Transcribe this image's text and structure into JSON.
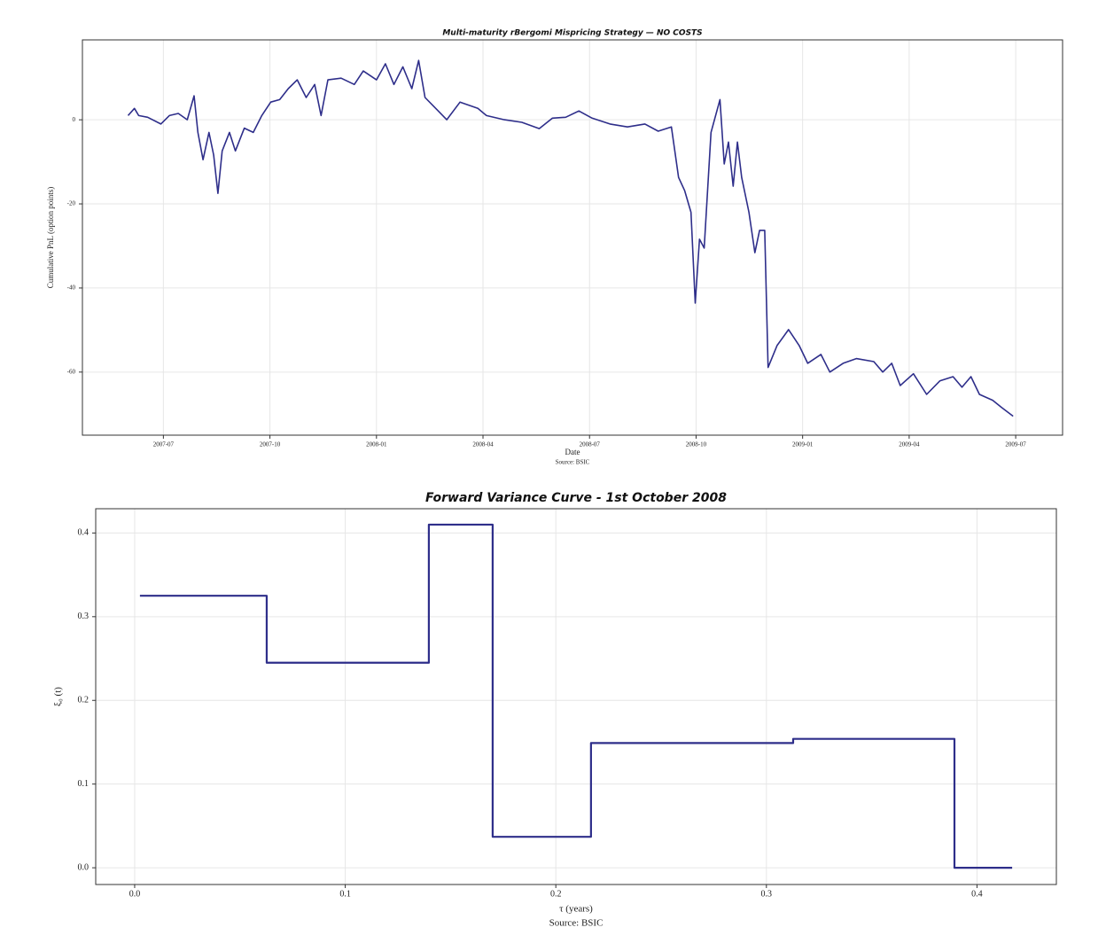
{
  "chart_data": [
    {
      "type": "line",
      "title": "Multi-maturity rBergomi Mispricing Strategy — NO COSTS",
      "xlabel": "Date",
      "ylabel": "Cumulative PnL (option points)",
      "source": "Source: BSIC",
      "color": "#2e2e8a",
      "grid": true,
      "xlim": [
        2007.31,
        2009.61
      ],
      "ylim": [
        -75,
        19
      ],
      "xticks": [
        {
          "value": 2007.5,
          "label": "2007-07"
        },
        {
          "value": 2007.75,
          "label": "2007-10"
        },
        {
          "value": 2008.0,
          "label": "2008-01"
        },
        {
          "value": 2008.25,
          "label": "2008-04"
        },
        {
          "value": 2008.5,
          "label": "2008-07"
        },
        {
          "value": 2008.75,
          "label": "2008-10"
        },
        {
          "value": 2009.0,
          "label": "2009-01"
        },
        {
          "value": 2009.25,
          "label": "2009-04"
        },
        {
          "value": 2009.5,
          "label": "2009-07"
        }
      ],
      "yticks": [
        0,
        -20,
        -40,
        -60
      ],
      "x": [
        2007.417,
        2007.432,
        2007.442,
        2007.463,
        2007.494,
        2007.514,
        2007.535,
        2007.556,
        2007.572,
        2007.581,
        2007.593,
        2007.607,
        2007.618,
        2007.628,
        2007.638,
        2007.655,
        2007.669,
        2007.69,
        2007.711,
        2007.731,
        2007.752,
        2007.773,
        2007.793,
        2007.814,
        2007.835,
        2007.855,
        2007.87,
        2007.886,
        2007.917,
        2007.948,
        2007.969,
        2008.0,
        2008.021,
        2008.041,
        2008.062,
        2008.083,
        2008.099,
        2008.114,
        2008.145,
        2008.165,
        2008.196,
        2008.238,
        2008.258,
        2008.3,
        2008.341,
        2008.382,
        2008.413,
        2008.444,
        2008.475,
        2008.506,
        2008.548,
        2008.589,
        2008.63,
        2008.661,
        2008.692,
        2008.709,
        2008.723,
        2008.738,
        2008.748,
        2008.758,
        2008.769,
        2008.785,
        2008.806,
        2008.816,
        2008.826,
        2008.837,
        2008.847,
        2008.857,
        2008.874,
        2008.888,
        2008.899,
        2008.911,
        2008.919,
        2008.94,
        2008.967,
        2008.992,
        2009.012,
        2009.043,
        2009.064,
        2009.095,
        2009.126,
        2009.167,
        2009.188,
        2009.209,
        2009.229,
        2009.26,
        2009.291,
        2009.322,
        2009.353,
        2009.374,
        2009.395,
        2009.415,
        2009.446,
        2009.467,
        2009.494
      ],
      "values": [
        1,
        2.7,
        1,
        0.6,
        -1,
        1,
        1.5,
        0,
        5.7,
        -3,
        -9.5,
        -3,
        -8.4,
        -17.5,
        -7.4,
        -3,
        -7.4,
        -2,
        -3,
        1,
        4.2,
        4.8,
        7.4,
        9.5,
        5.3,
        8.4,
        1,
        9.5,
        9.9,
        8.4,
        11.6,
        9.5,
        13.3,
        8.4,
        12.6,
        7.4,
        14.1,
        5.3,
        2.1,
        0,
        4.2,
        2.7,
        1,
        0,
        -0.6,
        -2.1,
        0.4,
        0.6,
        2.1,
        0.4,
        -1,
        -1.7,
        -1,
        -2.7,
        -1.7,
        -13.7,
        -16.8,
        -22,
        -43.6,
        -28.4,
        -30.5,
        -3,
        4.8,
        -10.5,
        -5.3,
        -15.8,
        -5.3,
        -13.7,
        -22,
        -31.6,
        -26.3,
        -26.3,
        -58.9,
        -53.7,
        -49.9,
        -53.7,
        -57.9,
        -55.8,
        -60,
        -57.9,
        -56.8,
        -57.5,
        -60,
        -57.9,
        -63.2,
        -60.4,
        -65.3,
        -62.1,
        -61.1,
        -63.6,
        -61.1,
        -65.3,
        -66.7,
        -68.4,
        -70.5
      ]
    },
    {
      "type": "step",
      "where": "post",
      "title": "Forward Variance Curve - 1st October 2008",
      "xlabel": "τ (years)",
      "ylabel": "ξ₀ (t)",
      "source": "Source: BSIC",
      "color": "#2e2e8a",
      "grid": true,
      "xlim": [
        -0.0185,
        0.4377
      ],
      "ylim": [
        -0.02,
        0.429
      ],
      "xticks": [
        {
          "value": 0,
          "label": "0.0"
        },
        0.1,
        0.2,
        0.3,
        0.4
      ],
      "yticks": [
        {
          "value": 0,
          "label": "0.0"
        },
        0.1,
        0.2,
        0.3,
        0.4
      ],
      "x": [
        0.0025,
        0.0627,
        0.1397,
        0.17,
        0.2167,
        0.3127,
        0.3893,
        0.4167
      ],
      "values": [
        0.325,
        0.245,
        0.41,
        0.037,
        0.149,
        0.154,
        0.0,
        0.0
      ]
    }
  ]
}
